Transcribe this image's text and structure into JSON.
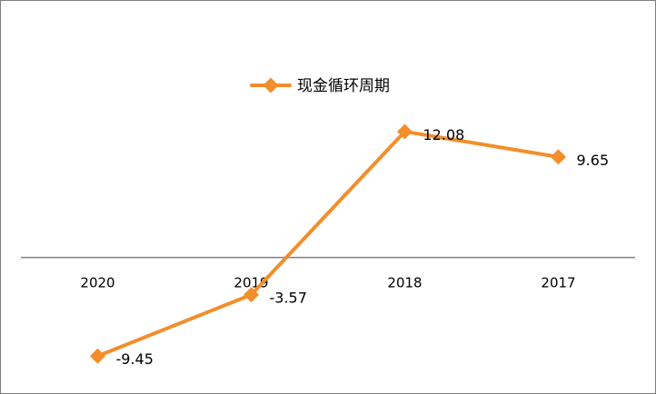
{
  "chart_data": {
    "type": "line",
    "categories": [
      "2020",
      "2019",
      "2018",
      "2017"
    ],
    "series": [
      {
        "name": "现金循环周期",
        "values": [
          -9.45,
          -3.57,
          12.08,
          9.65
        ],
        "data_labels": [
          "-9.45",
          "-3.57",
          "12.08",
          "9.65"
        ],
        "color": "#f28e2b"
      }
    ],
    "ylim": [
      -13,
      22
    ],
    "grid": false,
    "legend": "top-center",
    "axis_color": "#808080"
  }
}
